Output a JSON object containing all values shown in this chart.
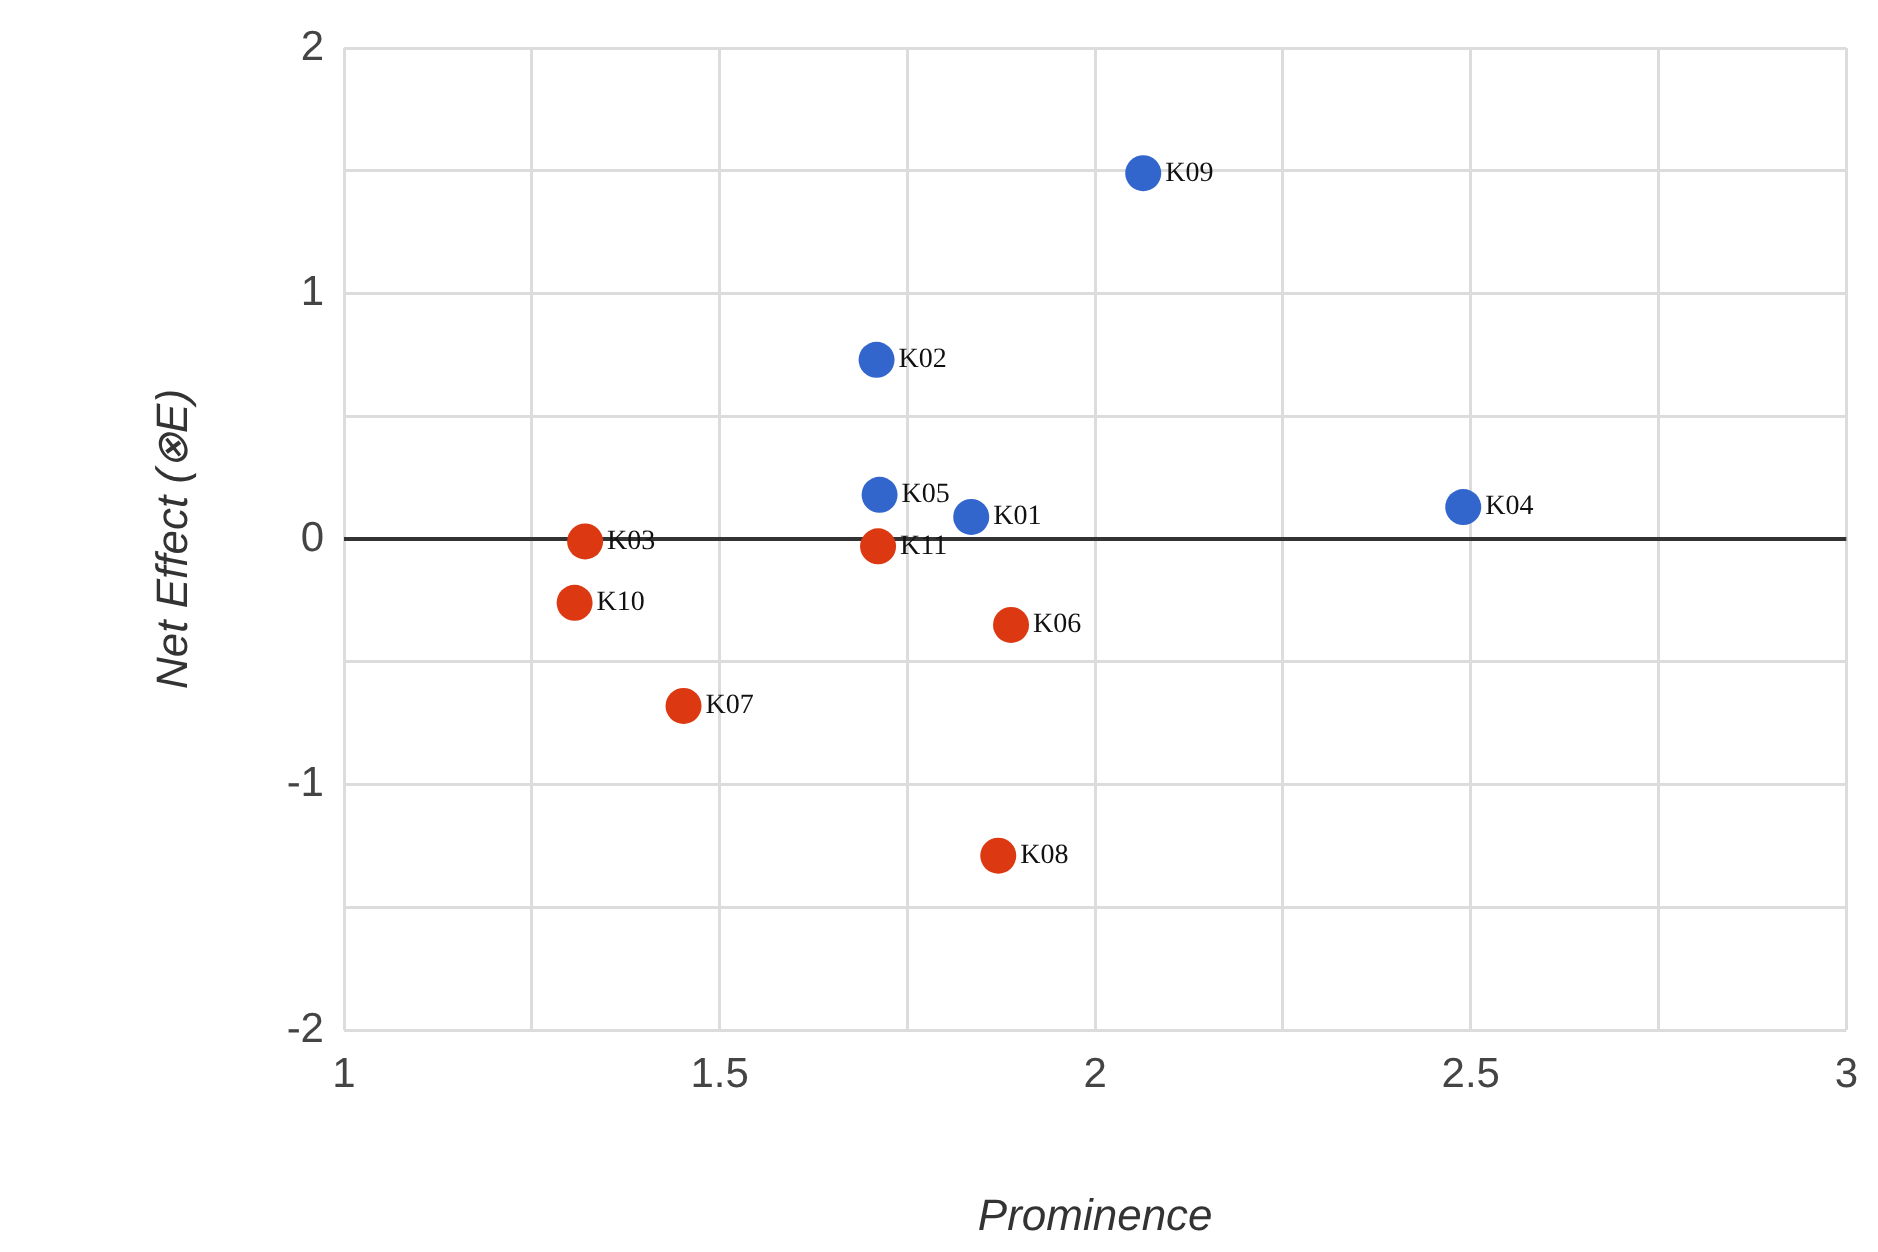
{
  "chart_data": {
    "type": "scatter",
    "xlabel": "Prominence",
    "ylabel": "Net Effect (⊗E)",
    "xlim": [
      1,
      3
    ],
    "xticks": [
      1,
      {
        "value": 1.25,
        "label": null
      },
      1.5,
      {
        "value": 1.75,
        "label": null
      },
      2,
      {
        "value": 2.25,
        "label": null
      },
      2.5,
      {
        "value": 2.75,
        "label": null
      },
      3
    ],
    "ylim": [
      -2,
      2
    ],
    "yticks": [
      -2,
      {
        "value": -1.5,
        "label": null
      },
      -1,
      {
        "value": -0.5,
        "label": null
      },
      0,
      {
        "value": 0.5,
        "label": null
      },
      1,
      {
        "value": 1.5,
        "label": null
      },
      2
    ],
    "grid": true,
    "legend": false,
    "marker": "circle",
    "series": [
      {
        "color": "#3366cc",
        "x": [
          1.835,
          1.709,
          2.49,
          1.713,
          2.064
        ],
        "values": [
          0.09,
          0.73,
          0.13,
          0.18,
          1.49
        ]
      },
      {
        "color": "#dc3912",
        "x": [
          1.321,
          1.888,
          1.452,
          1.871,
          1.307,
          1.711
        ],
        "values": [
          -0.01,
          -0.35,
          -0.68,
          -1.29,
          -0.26,
          -0.03
        ]
      }
    ],
    "ref_lines": [
      {
        "axis": "y",
        "value": 0,
        "color": "#333333"
      }
    ],
    "annotations": [
      {
        "text": "K01",
        "x": 1.835,
        "y": 0.09
      },
      {
        "text": "K02",
        "x": 1.709,
        "y": 0.73
      },
      {
        "text": "K04",
        "x": 2.49,
        "y": 0.13
      },
      {
        "text": "K05",
        "x": 1.713,
        "y": 0.18
      },
      {
        "text": "K09",
        "x": 2.064,
        "y": 1.49
      },
      {
        "text": "K03",
        "x": 1.321,
        "y": -0.01
      },
      {
        "text": "K06",
        "x": 1.888,
        "y": -0.35
      },
      {
        "text": "K07",
        "x": 1.452,
        "y": -0.68
      },
      {
        "text": "K08",
        "x": 1.871,
        "y": -1.29
      },
      {
        "text": "K10",
        "x": 1.307,
        "y": -0.26
      },
      {
        "text": "K11",
        "x": 1.711,
        "y": -0.03
      }
    ]
  }
}
